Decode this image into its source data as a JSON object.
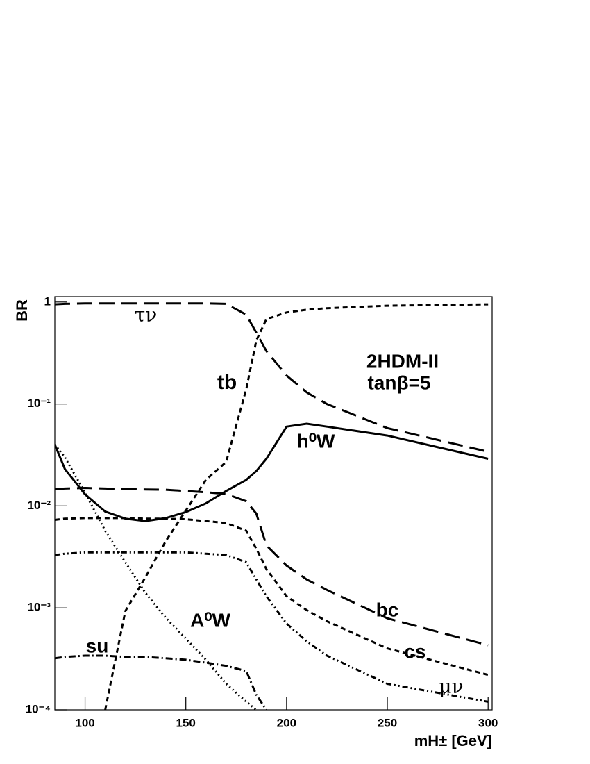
{
  "chart_data": {
    "type": "line",
    "y_label": "BR",
    "x_label": "mH± [GeV]",
    "annotations": [
      "2HDM-II",
      "tanβ=5"
    ],
    "log_y": true,
    "xlim": [
      85,
      302
    ],
    "ylim": [
      0.0001,
      1.13
    ],
    "xticks": [
      100,
      150,
      200,
      250,
      300
    ],
    "yticks": [
      {
        "value": 0.0001,
        "label": "10⁻⁴"
      },
      {
        "value": 0.001,
        "label": "10⁻³"
      },
      {
        "value": 0.01,
        "label": "10⁻²"
      },
      {
        "value": 0.1,
        "label": "10⁻¹"
      },
      1
    ],
    "x": [
      85,
      90,
      100,
      110,
      120,
      130,
      140,
      150,
      160,
      170,
      180,
      185,
      190,
      200,
      210,
      220,
      250,
      300
    ],
    "series": [
      {
        "name": "τν",
        "color": "#000",
        "style": "long-dash",
        "values": [
          0.95,
          0.96,
          0.97,
          0.97,
          0.97,
          0.97,
          0.97,
          0.97,
          0.97,
          0.96,
          0.75,
          0.5,
          0.33,
          0.19,
          0.13,
          0.1,
          0.058,
          0.034
        ]
      },
      {
        "name": "tb",
        "color": "#000",
        "style": "short-dash",
        "values": [
          null,
          null,
          null,
          0.0001,
          0.00093,
          0.002,
          0.0045,
          0.009,
          0.018,
          0.027,
          0.14,
          0.42,
          0.68,
          0.79,
          0.84,
          0.87,
          0.92,
          0.95
        ]
      },
      {
        "name": "h⁰W",
        "color": "#000",
        "style": "solid",
        "values": [
          0.04,
          0.023,
          0.013,
          0.0088,
          0.0075,
          0.0071,
          0.0076,
          0.0087,
          0.0106,
          0.014,
          0.018,
          0.022,
          0.029,
          0.06,
          0.064,
          0.06,
          0.049,
          0.029
        ]
      },
      {
        "name": "A⁰W",
        "color": "#000",
        "style": "dotted",
        "values": [
          0.04,
          0.03,
          0.0135,
          0.0057,
          0.0028,
          0.0014,
          0.0008,
          0.0005,
          0.00031,
          0.00018,
          0.00012,
          0.0001,
          null,
          null,
          null,
          null,
          null,
          null
        ]
      },
      {
        "name": "bc",
        "color": "#000",
        "style": "long-dash",
        "values": [
          0.0146,
          0.0148,
          0.015,
          0.0148,
          0.0146,
          0.0145,
          0.0144,
          0.014,
          0.0136,
          0.0131,
          0.0111,
          0.0084,
          0.0041,
          0.0026,
          0.0019,
          0.0015,
          0.00079,
          0.00043
        ]
      },
      {
        "name": "cs",
        "color": "#000",
        "style": "short-dash",
        "values": [
          0.0073,
          0.0075,
          0.0076,
          0.0076,
          0.0076,
          0.0075,
          0.0075,
          0.0074,
          0.0071,
          0.0068,
          0.0057,
          0.0038,
          0.0024,
          0.0013,
          0.00095,
          0.00074,
          0.0004,
          0.00022
        ]
      },
      {
        "name": "μν",
        "color": "#000",
        "style": "dash-dot-dot",
        "values": [
          0.0033,
          0.0034,
          0.0035,
          0.0035,
          0.0035,
          0.0035,
          0.0035,
          0.0035,
          0.0034,
          0.0033,
          0.0028,
          0.0019,
          0.0013,
          0.0007,
          0.00047,
          0.00034,
          0.00018,
          0.00012
        ]
      },
      {
        "name": "su",
        "color": "#000",
        "style": "dash-dot",
        "values": [
          0.00032,
          0.00033,
          0.00034,
          0.00034,
          0.00033,
          0.00033,
          0.00032,
          0.00031,
          0.00029,
          0.00027,
          0.00024,
          0.00014,
          0.0001,
          null,
          null,
          null,
          null,
          null
        ]
      }
    ]
  }
}
